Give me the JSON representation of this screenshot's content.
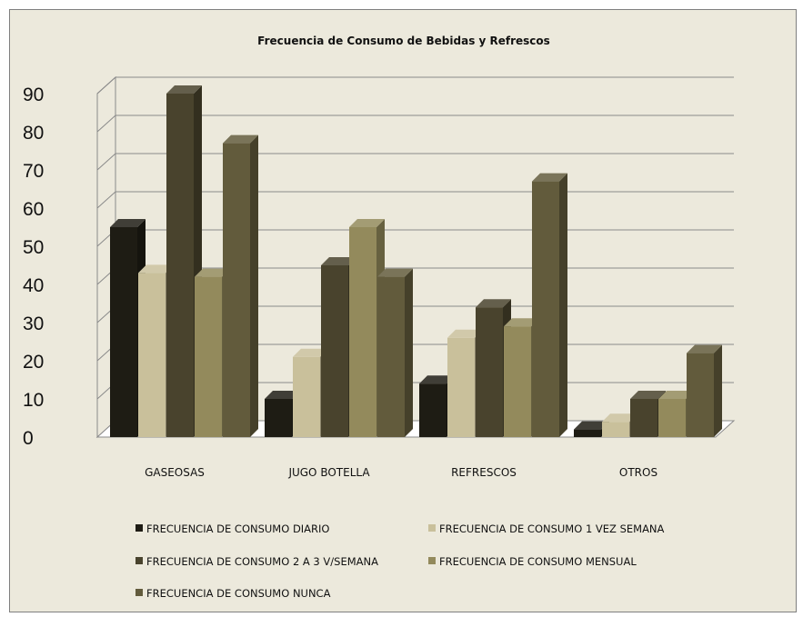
{
  "chart_data": {
    "type": "bar",
    "title": "Frecuencia de Consumo de Bebidas y Refrescos",
    "xlabel": "",
    "ylabel": "",
    "categories": [
      "GASEOSAS",
      "JUGO BOTELLA",
      "REFRESCOS",
      "OTROS"
    ],
    "ylim": [
      0,
      90
    ],
    "yticks": [
      0,
      10,
      20,
      30,
      40,
      50,
      60,
      70,
      80,
      90
    ],
    "grid": true,
    "legend_position": "bottom",
    "series": [
      {
        "name": "FRECUENCIA DE CONSUMO DIARIO",
        "color": "#1e1c14",
        "values": [
          55,
          10,
          14,
          2
        ]
      },
      {
        "name": "FRECUENCIA DE CONSUMO 1 VEZ SEMANA",
        "color": "#c9c09b",
        "values": [
          43,
          21,
          26,
          4
        ]
      },
      {
        "name": "FRECUENCIA DE CONSUMO 2 A 3 V/SEMANA",
        "color": "#49432d",
        "values": [
          90,
          45,
          34,
          10
        ]
      },
      {
        "name": "FRECUENCIA DE CONSUMO MENSUAL",
        "color": "#938a5c",
        "values": [
          42,
          55,
          29,
          10
        ]
      },
      {
        "name": "FRECUENCIA DE CONSUMO NUNCA",
        "color": "#625b3c",
        "values": [
          77,
          42,
          67,
          22
        ]
      }
    ]
  }
}
